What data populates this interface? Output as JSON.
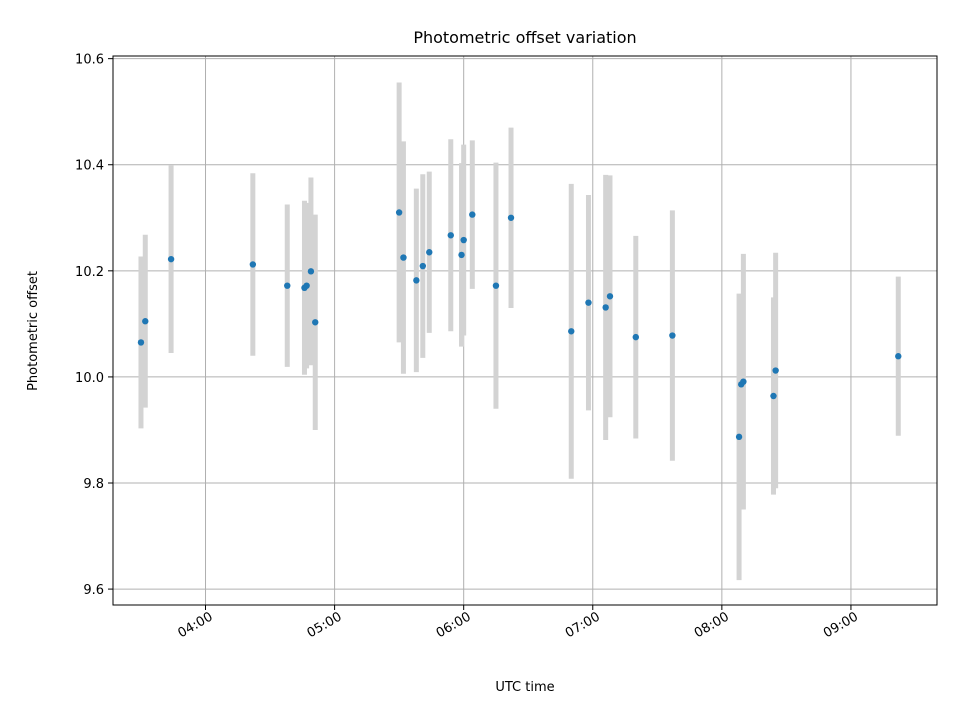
{
  "chart_data": {
    "type": "scatter",
    "title": "Photometric offset variation",
    "xlabel": "UTC time",
    "ylabel": "Photometric offset",
    "x_axis_type": "time",
    "xlim": [
      "03:17",
      "09:40"
    ],
    "ylim": [
      9.57,
      10.605
    ],
    "x_ticks": [
      "04:00",
      "05:00",
      "06:00",
      "07:00",
      "08:00",
      "09:00"
    ],
    "y_ticks": [
      9.6,
      9.8,
      10.0,
      10.2,
      10.4,
      10.6
    ],
    "grid": true,
    "legend": "none",
    "colors": {
      "point": "#1f77b4",
      "errorbar": "#d3d3d3",
      "grid": "#b0b0b0"
    },
    "points": [
      {
        "x": "03:30",
        "y": 10.065,
        "err": 0.162
      },
      {
        "x": "03:32",
        "y": 10.105,
        "err": 0.163
      },
      {
        "x": "03:44",
        "y": 10.222,
        "err": 0.177
      },
      {
        "x": "04:22",
        "y": 10.212,
        "err": 0.172
      },
      {
        "x": "04:38",
        "y": 10.172,
        "err": 0.153
      },
      {
        "x": "04:46",
        "y": 10.168,
        "err": 0.164
      },
      {
        "x": "04:47",
        "y": 10.172,
        "err": 0.156
      },
      {
        "x": "04:49",
        "y": 10.199,
        "err": 0.177
      },
      {
        "x": "04:51",
        "y": 10.103,
        "err": 0.203
      },
      {
        "x": "05:30",
        "y": 10.31,
        "err": 0.245
      },
      {
        "x": "05:32",
        "y": 10.225,
        "err": 0.219
      },
      {
        "x": "05:38",
        "y": 10.182,
        "err": 0.173
      },
      {
        "x": "05:41",
        "y": 10.209,
        "err": 0.173
      },
      {
        "x": "05:44",
        "y": 10.235,
        "err": 0.152
      },
      {
        "x": "05:54",
        "y": 10.267,
        "err": 0.181
      },
      {
        "x": "05:59",
        "y": 10.23,
        "err": 0.173
      },
      {
        "x": "06:00",
        "y": 10.258,
        "err": 0.18
      },
      {
        "x": "06:04",
        "y": 10.306,
        "err": 0.14
      },
      {
        "x": "06:15",
        "y": 10.172,
        "err": 0.232
      },
      {
        "x": "06:22",
        "y": 10.3,
        "err": 0.17
      },
      {
        "x": "06:50",
        "y": 10.086,
        "err": 0.278
      },
      {
        "x": "06:58",
        "y": 10.14,
        "err": 0.203
      },
      {
        "x": "07:06",
        "y": 10.131,
        "err": 0.25
      },
      {
        "x": "07:08",
        "y": 10.152,
        "err": 0.228
      },
      {
        "x": "07:20",
        "y": 10.075,
        "err": 0.191
      },
      {
        "x": "07:37",
        "y": 10.078,
        "err": 0.236
      },
      {
        "x": "08:08",
        "y": 9.887,
        "err": 0.27
      },
      {
        "x": "08:09",
        "y": 9.986,
        "err": 0.17
      },
      {
        "x": "08:10",
        "y": 9.991,
        "err": 0.241
      },
      {
        "x": "08:24",
        "y": 9.964,
        "err": 0.186
      },
      {
        "x": "08:25",
        "y": 10.012,
        "err": 0.222
      },
      {
        "x": "09:22",
        "y": 10.039,
        "err": 0.15
      }
    ]
  }
}
